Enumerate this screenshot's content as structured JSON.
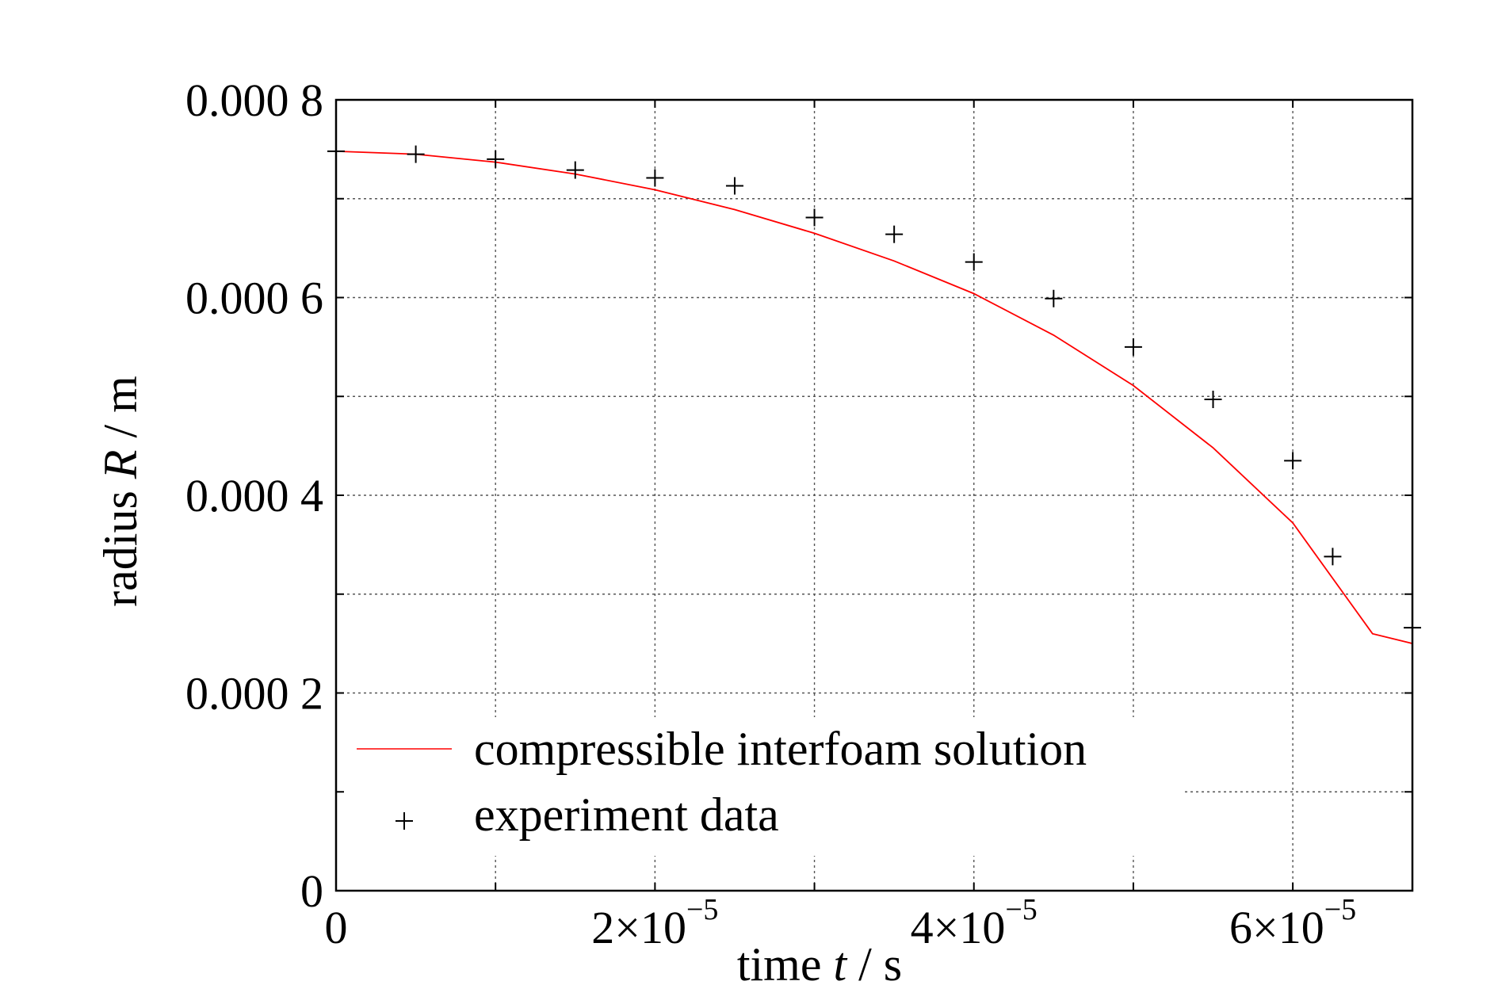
{
  "chart_data": {
    "type": "line",
    "xlabel_prefix": "time ",
    "xlabel_var": "t",
    "xlabel_suffix": " / s",
    "ylabel_prefix": "radius ",
    "ylabel_var": "R",
    "ylabel_suffix": " / m",
    "xlim": [
      0,
      6.75e-05
    ],
    "ylim": [
      0,
      0.0008
    ],
    "grid": true,
    "legend_position": "lower-left",
    "x_ticks": [
      {
        "value": 0,
        "label": "0"
      },
      {
        "value": 2e-05,
        "label": "2×10",
        "exp": "−5"
      },
      {
        "value": 4e-05,
        "label": "4×10",
        "exp": "−5"
      },
      {
        "value": 6e-05,
        "label": "6×10",
        "exp": "−5"
      }
    ],
    "x_minor_ticks": [
      1e-05,
      3e-05,
      5e-05
    ],
    "y_ticks": [
      {
        "value": 0,
        "label": "0"
      },
      {
        "value": 0.0002,
        "label": "0.000 2"
      },
      {
        "value": 0.0004,
        "label": "0.000 4"
      },
      {
        "value": 0.0006,
        "label": "0.000 6"
      },
      {
        "value": 0.0008,
        "label": "0.000 8"
      }
    ],
    "y_minor_ticks": [
      0.0001,
      0.0003,
      0.0005,
      0.0007
    ],
    "series": [
      {
        "name": "compressible interfoam solution",
        "style": "line",
        "color": "#ff0000",
        "x": [
          0,
          5e-06,
          1e-05,
          1.5e-05,
          2e-05,
          2.5e-05,
          3e-05,
          3.5e-05,
          4e-05,
          4.5e-05,
          5e-05,
          5.5e-05,
          6e-05,
          6.5e-05,
          6.75e-05
        ],
        "y": [
          0.000748,
          0.000745,
          0.000737,
          0.000725,
          0.000709,
          0.000689,
          0.000665,
          0.000637,
          0.000604,
          0.000562,
          0.000511,
          0.000448,
          0.000372,
          0.00026,
          0.00025
        ]
      },
      {
        "name": "experiment data",
        "style": "marker",
        "marker": "+",
        "color": "#000000",
        "x": [
          0,
          5e-06,
          1e-05,
          1.5e-05,
          2e-05,
          2.5e-05,
          3e-05,
          3.5e-05,
          4e-05,
          4.5e-05,
          5e-05,
          5.5e-05,
          6e-05,
          6.25e-05,
          6.75e-05
        ],
        "y": [
          0.000748,
          0.000745,
          0.00074,
          0.000729,
          0.000721,
          0.000713,
          0.000681,
          0.000664,
          0.000636,
          0.000599,
          0.00055,
          0.000497,
          0.000435,
          0.000338,
          0.000266
        ]
      }
    ]
  }
}
